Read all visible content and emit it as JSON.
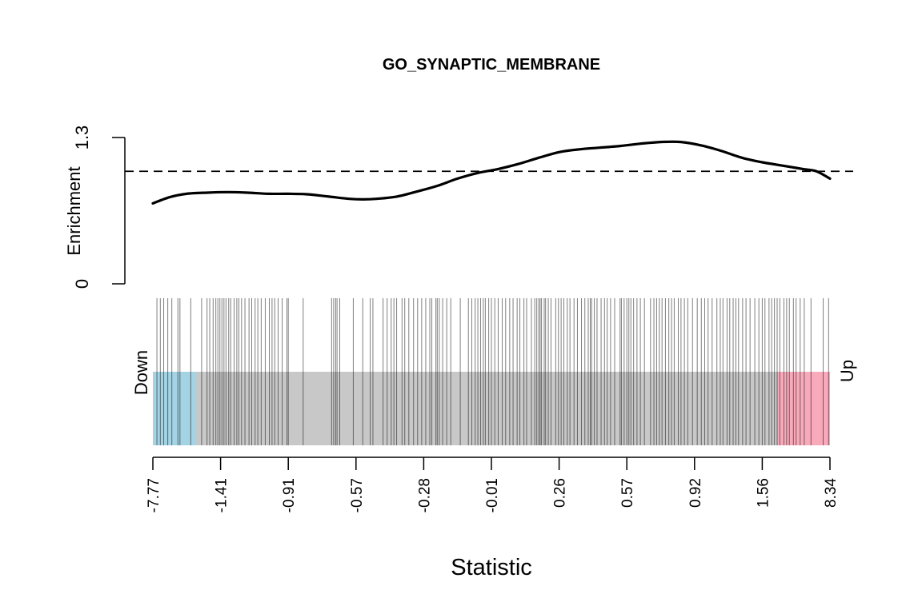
{
  "chart_data": {
    "type": "barcode",
    "title": "GO_SYNAPTIC_MEMBRANE",
    "xlabel": "Statistic",
    "ylabel": "Enrichment",
    "ylim": [
      0,
      1.3
    ],
    "yticks": [
      "0",
      "1.3"
    ],
    "reference_line": 1.0,
    "x_tick_labels": [
      "-7.77",
      "-1.41",
      "-0.91",
      "-0.57",
      "-0.28",
      "-0.01",
      "0.26",
      "0.57",
      "0.92",
      "1.56",
      "8.34"
    ],
    "x_range_rank": [
      0,
      1
    ],
    "down_label": "Down",
    "up_label": "Up",
    "down_region": [
      0,
      0.064
    ],
    "up_region": [
      0.922,
      1.0
    ],
    "colors": {
      "down": "#a4d3e3",
      "up": "#f8aabb",
      "middle": "#c8c8c8",
      "line": "#000000",
      "bar": "#000000"
    },
    "enrichment_curve": {
      "x": [
        0.0,
        0.025,
        0.05,
        0.08,
        0.11,
        0.14,
        0.17,
        0.2,
        0.23,
        0.26,
        0.29,
        0.31,
        0.33,
        0.36,
        0.39,
        0.42,
        0.45,
        0.48,
        0.51,
        0.54,
        0.57,
        0.6,
        0.63,
        0.66,
        0.69,
        0.72,
        0.75,
        0.78,
        0.81,
        0.84,
        0.87,
        0.9,
        0.92,
        0.94,
        0.96,
        0.98,
        1.0
      ],
      "y": [
        0.715,
        0.77,
        0.8,
        0.81,
        0.815,
        0.81,
        0.8,
        0.8,
        0.795,
        0.775,
        0.755,
        0.75,
        0.755,
        0.775,
        0.82,
        0.87,
        0.935,
        0.985,
        1.02,
        1.065,
        1.12,
        1.17,
        1.195,
        1.21,
        1.225,
        1.245,
        1.26,
        1.26,
        1.23,
        1.18,
        1.12,
        1.08,
        1.06,
        1.04,
        1.02,
        1.0,
        0.935
      ]
    },
    "barcode_ranks": [
      0.006,
      0.011,
      0.016,
      0.022,
      0.028,
      0.037,
      0.04,
      0.056,
      0.072,
      0.08,
      0.084,
      0.089,
      0.093,
      0.096,
      0.099,
      0.102,
      0.105,
      0.108,
      0.112,
      0.115,
      0.12,
      0.124,
      0.127,
      0.131,
      0.136,
      0.142,
      0.146,
      0.151,
      0.155,
      0.16,
      0.166,
      0.172,
      0.176,
      0.18,
      0.185,
      0.191,
      0.198,
      0.2,
      0.222,
      0.264,
      0.267,
      0.27,
      0.272,
      0.276,
      0.296,
      0.31,
      0.321,
      0.325,
      0.34,
      0.346,
      0.352,
      0.356,
      0.36,
      0.368,
      0.372,
      0.378,
      0.385,
      0.391,
      0.397,
      0.403,
      0.409,
      0.412,
      0.418,
      0.42,
      0.423,
      0.428,
      0.434,
      0.44,
      0.454,
      0.466,
      0.471,
      0.476,
      0.48,
      0.484,
      0.488,
      0.491,
      0.496,
      0.5,
      0.505,
      0.51,
      0.516,
      0.521,
      0.527,
      0.532,
      0.538,
      0.542,
      0.548,
      0.552,
      0.559,
      0.564,
      0.567,
      0.57,
      0.572,
      0.574,
      0.578,
      0.58,
      0.584,
      0.588,
      0.595,
      0.599,
      0.603,
      0.607,
      0.612,
      0.616,
      0.622,
      0.627,
      0.633,
      0.638,
      0.643,
      0.646,
      0.648,
      0.652,
      0.656,
      0.662,
      0.667,
      0.671,
      0.676,
      0.682,
      0.69,
      0.692,
      0.696,
      0.7,
      0.703,
      0.706,
      0.71,
      0.715,
      0.72,
      0.726,
      0.735,
      0.74,
      0.744,
      0.748,
      0.752,
      0.757,
      0.762,
      0.766,
      0.77,
      0.776,
      0.78,
      0.785,
      0.79,
      0.797,
      0.804,
      0.81,
      0.815,
      0.82,
      0.826,
      0.833,
      0.838,
      0.842,
      0.848,
      0.852,
      0.857,
      0.861,
      0.865,
      0.871,
      0.876,
      0.882,
      0.889,
      0.895,
      0.9,
      0.904,
      0.91,
      0.914,
      0.918,
      0.922,
      0.926,
      0.932,
      0.936,
      0.94,
      0.946,
      0.95,
      0.956,
      0.962,
      0.972,
      0.99,
      0.998
    ]
  }
}
